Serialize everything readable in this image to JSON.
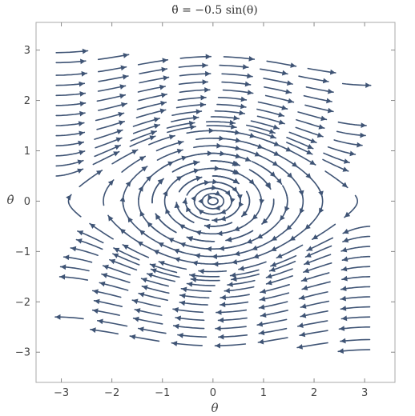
{
  "chart_data": {
    "type": "streamplot",
    "title": "θ̈ = −0.5 sin(θ)",
    "xlabel": "θ",
    "ylabel": "θ̇",
    "xlim": [
      -3.5,
      3.6
    ],
    "ylim": [
      -3.6,
      3.55
    ],
    "xticks": [
      -3,
      -2,
      -1,
      0,
      1,
      2,
      3
    ],
    "yticks": [
      -3,
      -2,
      -1,
      0,
      1,
      2,
      3
    ],
    "xtick_labels": [
      "−3",
      "−2",
      "−1",
      "0",
      "1",
      "2",
      "3"
    ],
    "ytick_labels": [
      "−3",
      "−2",
      "−1",
      "0",
      "1",
      "2",
      "3"
    ],
    "field": {
      "dtheta": "θ̇",
      "ddtheta": "−0.5 sin(θ)"
    },
    "domain": {
      "theta": [
        -3.14,
        3.14
      ],
      "theta_dot": [
        -3.0,
        3.0
      ]
    },
    "series": [
      {
        "values": [
          [
            -3.1,
            2.95
          ],
          [
            -3.1,
            2.75
          ],
          [
            -3.1,
            2.5
          ],
          [
            -3.1,
            2.3
          ],
          [
            -3.1,
            2.1
          ],
          [
            -3.1,
            1.9
          ],
          [
            -3.1,
            1.7
          ],
          [
            -3.1,
            1.5
          ],
          [
            -3.1,
            1.3
          ],
          [
            -3.1,
            1.1
          ],
          [
            -3.1,
            0.9
          ],
          [
            -3.1,
            0.7
          ],
          [
            -3.1,
            0.5
          ]
        ]
      },
      {
        "values": [
          [
            3.1,
            -2.95
          ],
          [
            3.1,
            -2.75
          ],
          [
            3.1,
            -2.5
          ],
          [
            3.1,
            -2.3
          ],
          [
            3.1,
            -2.1
          ],
          [
            3.1,
            -1.9
          ],
          [
            3.1,
            -1.7
          ],
          [
            3.1,
            -1.5
          ],
          [
            3.1,
            -1.3
          ],
          [
            3.1,
            -1.1
          ],
          [
            3.1,
            -0.9
          ],
          [
            3.1,
            -0.7
          ],
          [
            3.1,
            -0.5
          ]
        ]
      },
      {
        "values": [
          [
            0,
            1.4
          ],
          [
            0,
            1.25
          ],
          [
            0,
            1.1
          ],
          [
            0,
            0.95
          ],
          [
            0,
            0.8
          ],
          [
            0,
            0.65
          ],
          [
            0,
            0.5
          ],
          [
            0,
            0.38
          ],
          [
            0,
            0.26
          ],
          [
            0,
            0.15
          ],
          [
            0,
            0.07
          ]
        ]
      }
    ],
    "grid": false,
    "legend": "none",
    "colors": {
      "stream": "#3f5475",
      "frame": "#aaaaaa",
      "text": "#444444"
    }
  }
}
